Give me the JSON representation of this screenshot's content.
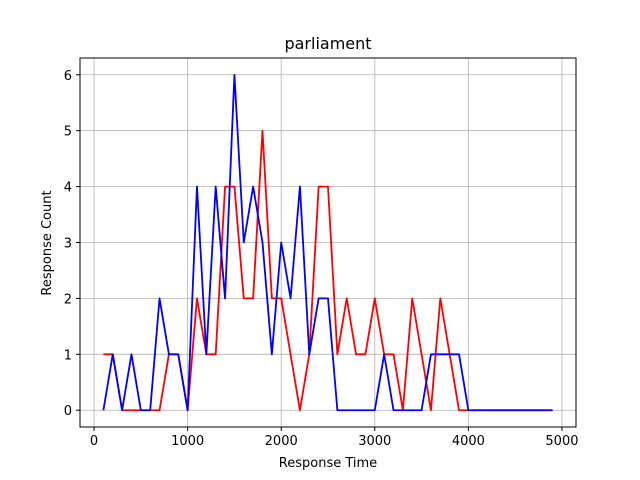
{
  "chart_data": {
    "type": "line",
    "title": "parliament",
    "xlabel": "Response Time",
    "ylabel": "Response Count",
    "xlim": [
      -150,
      5150
    ],
    "ylim": [
      -0.3,
      6.3
    ],
    "xticks": [
      0,
      1000,
      2000,
      3000,
      4000,
      5000
    ],
    "yticks": [
      0,
      1,
      2,
      3,
      4,
      5,
      6
    ],
    "grid": true,
    "x": [
      100,
      200,
      300,
      400,
      500,
      600,
      700,
      800,
      900,
      1000,
      1100,
      1200,
      1300,
      1400,
      1500,
      1600,
      1700,
      1800,
      1900,
      2000,
      2100,
      2200,
      2300,
      2400,
      2500,
      2600,
      2700,
      2800,
      2900,
      3000,
      3100,
      3200,
      3300,
      3400,
      3500,
      3600,
      3700,
      3800,
      3900,
      4000,
      4100,
      4200,
      4300,
      4400,
      4500,
      4600,
      4700,
      4800,
      4900
    ],
    "series": [
      {
        "color": "#ff0000",
        "values": [
          1,
          1,
          0,
          0,
          0,
          0,
          0,
          1,
          1,
          0,
          2,
          1,
          1,
          4,
          4,
          2,
          2,
          5,
          2,
          2,
          1,
          0,
          1,
          4,
          4,
          1,
          2,
          1,
          1,
          2,
          1,
          1,
          0,
          2,
          1,
          0,
          2,
          1,
          0,
          0,
          0,
          0,
          0,
          0,
          0,
          0,
          0,
          0,
          0
        ]
      },
      {
        "color": "#0000ff",
        "values": [
          0,
          1,
          0,
          1,
          0,
          0,
          2,
          1,
          1,
          0,
          4,
          1,
          4,
          2,
          6,
          3,
          4,
          3,
          1,
          3,
          2,
          4,
          1,
          2,
          2,
          0,
          0,
          0,
          0,
          0,
          1,
          0,
          0,
          0,
          0,
          1,
          1,
          1,
          1,
          0,
          0,
          0,
          0,
          0,
          0,
          0,
          0,
          0,
          0
        ]
      }
    ]
  }
}
